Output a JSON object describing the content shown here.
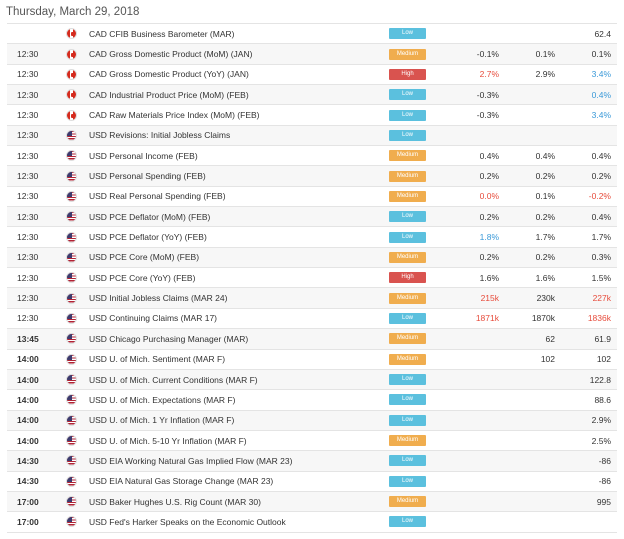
{
  "header": {
    "date": "Thursday, March 29, 2018"
  },
  "colors": {
    "low": "#5bc0de",
    "medium": "#f0ad4e",
    "high": "#d9534f",
    "better": "#3a99d8",
    "worse": "#e74c3c"
  },
  "events": [
    {
      "time": "",
      "bold": false,
      "country": "CAD",
      "flag": "canada-flag-icon",
      "event": "CAD CFIB Business Barometer (MAR)",
      "importance": "Low",
      "actual": "",
      "actual_color": "neutral",
      "forecast": "",
      "previous": "62.4",
      "previous_color": "neutral"
    },
    {
      "time": "12:30",
      "bold": false,
      "country": "CAD",
      "flag": "canada-flag-icon",
      "event": "CAD Gross Domestic Product (MoM) (JAN)",
      "importance": "Medium",
      "actual": "-0.1%",
      "actual_color": "neutral",
      "forecast": "0.1%",
      "previous": "0.1%",
      "previous_color": "neutral"
    },
    {
      "time": "12:30",
      "bold": false,
      "country": "CAD",
      "flag": "canada-flag-icon",
      "event": "CAD Gross Domestic Product (YoY) (JAN)",
      "importance": "High",
      "actual": "2.7%",
      "actual_color": "red",
      "forecast": "2.9%",
      "previous": "3.4%",
      "previous_color": "blue"
    },
    {
      "time": "12:30",
      "bold": false,
      "country": "CAD",
      "flag": "canada-flag-icon",
      "event": "CAD Industrial Product Price (MoM) (FEB)",
      "importance": "Low",
      "actual": "-0.3%",
      "actual_color": "neutral",
      "forecast": "",
      "previous": "0.4%",
      "previous_color": "blue"
    },
    {
      "time": "12:30",
      "bold": false,
      "country": "CAD",
      "flag": "canada-flag-icon",
      "event": "CAD Raw Materials Price Index (MoM) (FEB)",
      "importance": "Low",
      "actual": "-0.3%",
      "actual_color": "neutral",
      "forecast": "",
      "previous": "3.4%",
      "previous_color": "blue"
    },
    {
      "time": "12:30",
      "bold": false,
      "country": "USD",
      "flag": "usa-flag-icon",
      "event": "USD Revisions: Initial Jobless Claims",
      "importance": "Low",
      "actual": "",
      "actual_color": "neutral",
      "forecast": "",
      "previous": "",
      "previous_color": "neutral"
    },
    {
      "time": "12:30",
      "bold": false,
      "country": "USD",
      "flag": "usa-flag-icon",
      "event": "USD Personal Income (FEB)",
      "importance": "Medium",
      "actual": "0.4%",
      "actual_color": "neutral",
      "forecast": "0.4%",
      "previous": "0.4%",
      "previous_color": "neutral"
    },
    {
      "time": "12:30",
      "bold": false,
      "country": "USD",
      "flag": "usa-flag-icon",
      "event": "USD Personal Spending (FEB)",
      "importance": "Medium",
      "actual": "0.2%",
      "actual_color": "neutral",
      "forecast": "0.2%",
      "previous": "0.2%",
      "previous_color": "neutral"
    },
    {
      "time": "12:30",
      "bold": false,
      "country": "USD",
      "flag": "usa-flag-icon",
      "event": "USD Real Personal Spending (FEB)",
      "importance": "Medium",
      "actual": "0.0%",
      "actual_color": "red",
      "forecast": "0.1%",
      "previous": "-0.2%",
      "previous_color": "red"
    },
    {
      "time": "12:30",
      "bold": false,
      "country": "USD",
      "flag": "usa-flag-icon",
      "event": "USD PCE Deflator (MoM) (FEB)",
      "importance": "Low",
      "actual": "0.2%",
      "actual_color": "neutral",
      "forecast": "0.2%",
      "previous": "0.4%",
      "previous_color": "neutral"
    },
    {
      "time": "12:30",
      "bold": false,
      "country": "USD",
      "flag": "usa-flag-icon",
      "event": "USD PCE Deflator (YoY) (FEB)",
      "importance": "Low",
      "actual": "1.8%",
      "actual_color": "blue",
      "forecast": "1.7%",
      "previous": "1.7%",
      "previous_color": "neutral"
    },
    {
      "time": "12:30",
      "bold": false,
      "country": "USD",
      "flag": "usa-flag-icon",
      "event": "USD PCE Core (MoM) (FEB)",
      "importance": "Medium",
      "actual": "0.2%",
      "actual_color": "neutral",
      "forecast": "0.2%",
      "previous": "0.3%",
      "previous_color": "neutral"
    },
    {
      "time": "12:30",
      "bold": false,
      "country": "USD",
      "flag": "usa-flag-icon",
      "event": "USD PCE Core (YoY) (FEB)",
      "importance": "High",
      "actual": "1.6%",
      "actual_color": "neutral",
      "forecast": "1.6%",
      "previous": "1.5%",
      "previous_color": "neutral"
    },
    {
      "time": "12:30",
      "bold": false,
      "country": "USD",
      "flag": "usa-flag-icon",
      "event": "USD Initial Jobless Claims (MAR 24)",
      "importance": "Medium",
      "actual": "215k",
      "actual_color": "red",
      "forecast": "230k",
      "previous": "227k",
      "previous_color": "red"
    },
    {
      "time": "12:30",
      "bold": false,
      "country": "USD",
      "flag": "usa-flag-icon",
      "event": "USD Continuing Claims (MAR 17)",
      "importance": "Low",
      "actual": "1871k",
      "actual_color": "red",
      "forecast": "1870k",
      "previous": "1836k",
      "previous_color": "red"
    },
    {
      "time": "13:45",
      "bold": true,
      "country": "USD",
      "flag": "usa-flag-icon",
      "event": "USD Chicago Purchasing Manager (MAR)",
      "importance": "Medium",
      "actual": "",
      "actual_color": "neutral",
      "forecast": "62",
      "previous": "61.9",
      "previous_color": "neutral"
    },
    {
      "time": "14:00",
      "bold": true,
      "country": "USD",
      "flag": "usa-flag-icon",
      "event": "USD U. of Mich. Sentiment (MAR F)",
      "importance": "Medium",
      "actual": "",
      "actual_color": "neutral",
      "forecast": "102",
      "previous": "102",
      "previous_color": "neutral"
    },
    {
      "time": "14:00",
      "bold": true,
      "country": "USD",
      "flag": "usa-flag-icon",
      "event": "USD U. of Mich. Current Conditions (MAR F)",
      "importance": "Low",
      "actual": "",
      "actual_color": "neutral",
      "forecast": "",
      "previous": "122.8",
      "previous_color": "neutral"
    },
    {
      "time": "14:00",
      "bold": true,
      "country": "USD",
      "flag": "usa-flag-icon",
      "event": "USD U. of Mich. Expectations (MAR F)",
      "importance": "Low",
      "actual": "",
      "actual_color": "neutral",
      "forecast": "",
      "previous": "88.6",
      "previous_color": "neutral"
    },
    {
      "time": "14:00",
      "bold": true,
      "country": "USD",
      "flag": "usa-flag-icon",
      "event": "USD U. of Mich. 1 Yr Inflation (MAR F)",
      "importance": "Low",
      "actual": "",
      "actual_color": "neutral",
      "forecast": "",
      "previous": "2.9%",
      "previous_color": "neutral"
    },
    {
      "time": "14:00",
      "bold": true,
      "country": "USD",
      "flag": "usa-flag-icon",
      "event": "USD U. of Mich. 5-10 Yr Inflation (MAR F)",
      "importance": "Medium",
      "actual": "",
      "actual_color": "neutral",
      "forecast": "",
      "previous": "2.5%",
      "previous_color": "neutral"
    },
    {
      "time": "14:30",
      "bold": true,
      "country": "USD",
      "flag": "usa-flag-icon",
      "event": "USD EIA Working Natural Gas Implied Flow (MAR 23)",
      "importance": "Low",
      "actual": "",
      "actual_color": "neutral",
      "forecast": "",
      "previous": "-86",
      "previous_color": "neutral"
    },
    {
      "time": "14:30",
      "bold": true,
      "country": "USD",
      "flag": "usa-flag-icon",
      "event": "USD EIA Natural Gas Storage Change (MAR 23)",
      "importance": "Low",
      "actual": "",
      "actual_color": "neutral",
      "forecast": "",
      "previous": "-86",
      "previous_color": "neutral"
    },
    {
      "time": "17:00",
      "bold": true,
      "country": "USD",
      "flag": "usa-flag-icon",
      "event": "USD Baker Hughes U.S. Rig Count (MAR 30)",
      "importance": "Medium",
      "actual": "",
      "actual_color": "neutral",
      "forecast": "",
      "previous": "995",
      "previous_color": "neutral"
    },
    {
      "time": "17:00",
      "bold": true,
      "country": "USD",
      "flag": "usa-flag-icon",
      "event": "USD Fed's Harker Speaks on the Economic Outlook",
      "importance": "Low",
      "actual": "",
      "actual_color": "neutral",
      "forecast": "",
      "previous": "",
      "previous_color": "neutral"
    }
  ]
}
